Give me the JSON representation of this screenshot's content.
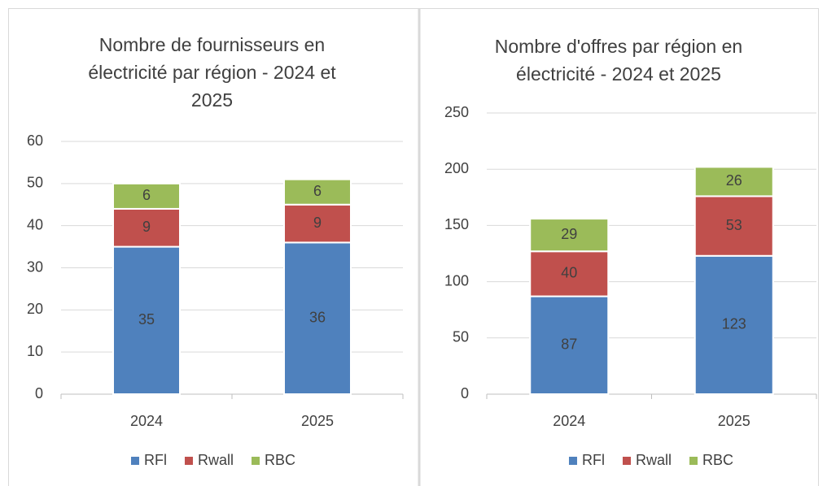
{
  "chart_data": [
    {
      "type": "bar",
      "stacked": true,
      "title": "Nombre de fournisseurs en électricité par région - 2024 et 2025",
      "categories": [
        "2024",
        "2025"
      ],
      "series": [
        {
          "name": "RFl",
          "color": "#4f81bd",
          "values": [
            35,
            36
          ]
        },
        {
          "name": "Rwall",
          "color": "#c0504d",
          "values": [
            9,
            9
          ]
        },
        {
          "name": "RBC",
          "color": "#9bbb59",
          "values": [
            6,
            6
          ]
        }
      ],
      "ylim": [
        0,
        60
      ],
      "yticks": [
        0,
        10,
        20,
        30,
        40,
        50,
        60
      ],
      "grid": true,
      "legend": "bottom"
    },
    {
      "type": "bar",
      "stacked": true,
      "title": "Nombre d'offres par région en électricité - 2024 et 2025",
      "categories": [
        "2024",
        "2025"
      ],
      "series": [
        {
          "name": "RFl",
          "color": "#4f81bd",
          "values": [
            87,
            123
          ]
        },
        {
          "name": "Rwall",
          "color": "#c0504d",
          "values": [
            40,
            53
          ]
        },
        {
          "name": "RBC",
          "color": "#9bbb59",
          "values": [
            29,
            26
          ]
        }
      ],
      "ylim": [
        0,
        250
      ],
      "yticks": [
        0,
        50,
        100,
        150,
        200,
        250
      ],
      "grid": true,
      "legend": "bottom"
    }
  ]
}
